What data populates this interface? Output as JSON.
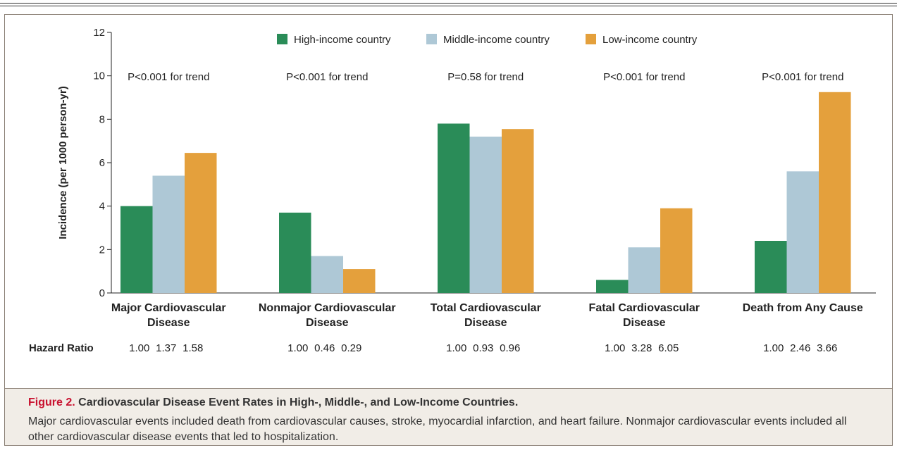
{
  "chart_data": {
    "type": "bar",
    "ylabel": "Incidence (per 1000 person-yr)",
    "ylim": [
      0,
      12
    ],
    "yticks": [
      0,
      2,
      4,
      6,
      8,
      10,
      12
    ],
    "grid": false,
    "legend_position": "top-center",
    "categories": [
      [
        "Major Cardiovascular",
        "Disease"
      ],
      [
        "Nonmajor Cardiovascular",
        "Disease"
      ],
      [
        "Total Cardiovascular",
        "Disease"
      ],
      [
        "Fatal Cardiovascular",
        "Disease"
      ],
      [
        "Death from Any Cause"
      ]
    ],
    "series": [
      {
        "name": "High-income country",
        "color": "#2a8c58",
        "values": [
          4.0,
          3.7,
          7.8,
          0.6,
          2.4
        ]
      },
      {
        "name": "Middle-income country",
        "color": "#aec8d6",
        "values": [
          5.4,
          1.7,
          7.2,
          2.1,
          5.6
        ]
      },
      {
        "name": "Low-income country",
        "color": "#e4a03c",
        "values": [
          6.45,
          1.1,
          7.55,
          3.9,
          9.25
        ]
      }
    ],
    "trend_labels": [
      "P<0.001 for trend",
      "P<0.001 for trend",
      "P=0.58 for trend",
      "P<0.001 for trend",
      "P<0.001 for trend"
    ],
    "hazard_ratio_label": "Hazard Ratio",
    "hazard_ratios": [
      [
        "1.00",
        "1.37",
        "1.58"
      ],
      [
        "1.00",
        "0.46",
        "0.29"
      ],
      [
        "1.00",
        "0.93",
        "0.96"
      ],
      [
        "1.00",
        "3.28",
        "6.05"
      ],
      [
        "1.00",
        "2.46",
        "3.66"
      ]
    ]
  },
  "caption": {
    "figure_label": "Figure 2.",
    "title": "Cardiovascular Disease Event Rates in High-, Middle-, and Low-Income Countries.",
    "body": "Major cardiovascular events included death from cardiovascular causes, stroke, myocardial infarction, and heart failure. Nonmajor cardiovascular events included all other cardiovascular disease events that led to hospitalization."
  }
}
